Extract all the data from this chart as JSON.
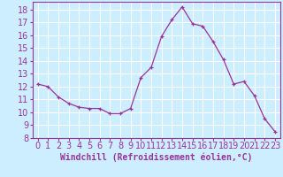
{
  "x": [
    0,
    1,
    2,
    3,
    4,
    5,
    6,
    7,
    8,
    9,
    10,
    11,
    12,
    13,
    14,
    15,
    16,
    17,
    18,
    19,
    20,
    21,
    22,
    23
  ],
  "y": [
    12.2,
    12.0,
    11.2,
    10.7,
    10.4,
    10.3,
    10.3,
    9.9,
    9.9,
    10.3,
    12.7,
    13.5,
    15.9,
    17.2,
    18.2,
    16.9,
    16.7,
    15.5,
    14.1,
    12.2,
    12.4,
    11.3,
    9.5,
    8.5
  ],
  "line_color": "#993399",
  "background_color": "#cceeff",
  "grid_color": "#ffffff",
  "xlabel": "Windchill (Refroidissement éolien,°C)",
  "xlim": [
    -0.5,
    23.5
  ],
  "ylim": [
    8,
    18.6
  ],
  "xticks": [
    0,
    1,
    2,
    3,
    4,
    5,
    6,
    7,
    8,
    9,
    10,
    11,
    12,
    13,
    14,
    15,
    16,
    17,
    18,
    19,
    20,
    21,
    22,
    23
  ],
  "yticks": [
    8,
    9,
    10,
    11,
    12,
    13,
    14,
    15,
    16,
    17,
    18
  ],
  "tick_fontsize": 7,
  "xlabel_fontsize": 7
}
